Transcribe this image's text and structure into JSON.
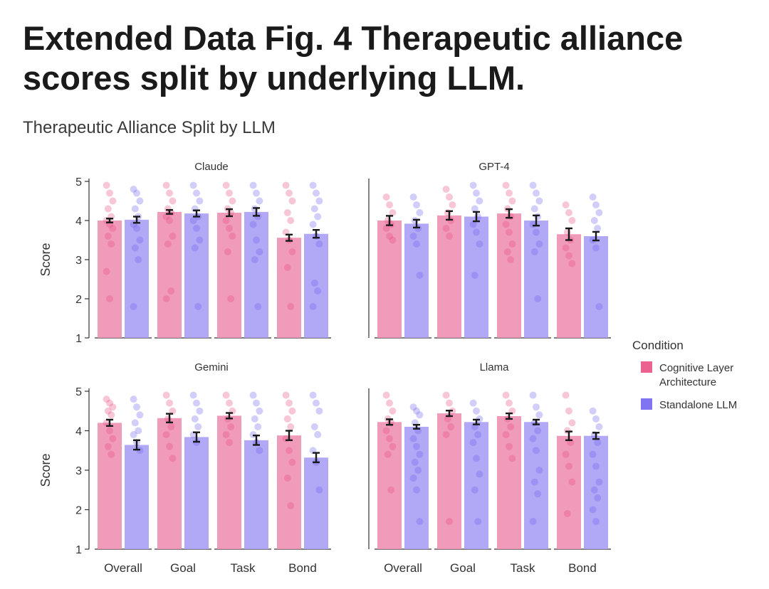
{
  "heading": "Extended Data Fig. 4 Therapeutic alliance scores split by underlying LLM.",
  "chart_data": {
    "type": "bar",
    "title": "Therapeutic Alliance Split by LLM",
    "ylabel": "Score",
    "ylim": [
      1,
      5
    ],
    "yticks": [
      "1",
      "2",
      "3",
      "4",
      "5"
    ],
    "categories": [
      "Overall",
      "Goal",
      "Task",
      "Bond"
    ],
    "legend": {
      "title": "Condition",
      "position": "right",
      "entries": [
        {
          "name": "Cognitive Layer Architecture",
          "lines": [
            "Cognitive Layer",
            "Architecture"
          ],
          "color": "#f090b4"
        },
        {
          "name": "Standalone LLM",
          "lines": [
            "Standalone LLM"
          ],
          "color": "#a8a0f4"
        }
      ]
    },
    "colors": {
      "cla_bar": "#f090b4",
      "cla_dot": "#e8457c",
      "sa_bar": "#a8a0f4",
      "sa_dot": "#6a5cf0",
      "error_bar": "#1a1a1a"
    },
    "panels": [
      {
        "name": "Claude",
        "series": [
          {
            "name": "Cognitive Layer Architecture",
            "values": [
              4.0,
              4.22,
              4.2,
              3.56
            ],
            "errors": [
              0.05,
              0.05,
              0.09,
              0.08
            ],
            "points": [
              [
                4.9,
                4.7,
                4.5,
                4.3,
                4.1,
                4.0,
                3.9,
                3.8,
                3.6,
                3.4,
                2.7,
                2.0
              ],
              [
                4.9,
                4.7,
                4.5,
                4.3,
                4.2,
                4.1,
                4.0,
                3.6,
                3.4,
                2.2,
                2.0
              ],
              [
                4.9,
                4.7,
                4.5,
                4.3,
                4.2,
                4.0,
                3.8,
                3.6,
                3.2,
                2.0
              ],
              [
                4.9,
                4.7,
                4.5,
                4.2,
                4.0,
                3.7,
                3.5,
                3.2,
                2.8,
                1.8
              ]
            ]
          },
          {
            "name": "Standalone LLM",
            "values": [
              4.02,
              4.18,
              4.22,
              3.66
            ],
            "errors": [
              0.08,
              0.08,
              0.1,
              0.1
            ],
            "points": [
              [
                4.8,
                4.7,
                4.5,
                4.3,
                4.1,
                3.9,
                3.8,
                3.5,
                3.3,
                3.0,
                1.8
              ],
              [
                4.9,
                4.7,
                4.5,
                4.3,
                4.1,
                4.0,
                3.8,
                3.5,
                3.3,
                1.8
              ],
              [
                4.9,
                4.7,
                4.5,
                4.3,
                4.1,
                3.9,
                3.5,
                3.2,
                3.0,
                1.8
              ],
              [
                4.9,
                4.7,
                4.5,
                4.3,
                4.1,
                3.9,
                3.6,
                3.4,
                2.4,
                2.2,
                1.8
              ]
            ]
          }
        ]
      },
      {
        "name": "GPT-4",
        "series": [
          {
            "name": "Cognitive Layer Architecture",
            "values": [
              4.0,
              4.13,
              4.18,
              3.65
            ],
            "errors": [
              0.12,
              0.11,
              0.11,
              0.15
            ],
            "points": [
              [
                4.6,
                4.4,
                4.2,
                4.0,
                3.9,
                3.8,
                3.6,
                3.5
              ],
              [
                4.8,
                4.6,
                4.4,
                4.2,
                4.0,
                3.8,
                3.6
              ],
              [
                4.9,
                4.7,
                4.5,
                4.3,
                4.1,
                3.9,
                3.7,
                3.4,
                3.2,
                3.0
              ],
              [
                4.4,
                4.2,
                4.0,
                3.7,
                3.5,
                3.3,
                3.1,
                2.9
              ]
            ]
          },
          {
            "name": "Standalone LLM",
            "values": [
              3.92,
              4.1,
              4.0,
              3.6
            ],
            "errors": [
              0.1,
              0.12,
              0.13,
              0.11
            ],
            "points": [
              [
                4.6,
                4.4,
                4.2,
                4.0,
                3.8,
                3.6,
                3.4,
                2.6
              ],
              [
                4.9,
                4.7,
                4.5,
                4.3,
                4.1,
                3.9,
                3.7,
                3.4,
                2.6
              ],
              [
                4.9,
                4.7,
                4.5,
                4.3,
                4.1,
                3.9,
                3.7,
                3.4,
                3.2,
                2.0
              ],
              [
                4.6,
                4.4,
                4.2,
                4.0,
                3.8,
                3.5,
                3.3,
                1.8
              ]
            ]
          }
        ]
      },
      {
        "name": "Gemini",
        "series": [
          {
            "name": "Cognitive Layer Architecture",
            "values": [
              4.2,
              4.32,
              4.38,
              3.88
            ],
            "errors": [
              0.08,
              0.11,
              0.07,
              0.12
            ],
            "points": [
              [
                4.8,
                4.7,
                4.6,
                4.5,
                4.4,
                4.2,
                4.0,
                3.8,
                3.6,
                3.4
              ],
              [
                4.9,
                4.7,
                4.5,
                4.3,
                4.1,
                3.9,
                3.6,
                3.3
              ],
              [
                4.9,
                4.7,
                4.5,
                4.3,
                4.1,
                3.9,
                3.7
              ],
              [
                4.9,
                4.7,
                4.5,
                4.3,
                4.1,
                3.8,
                3.5,
                3.2,
                2.8,
                2.1
              ]
            ]
          },
          {
            "name": "Standalone LLM",
            "values": [
              3.64,
              3.84,
              3.76,
              3.32
            ],
            "errors": [
              0.12,
              0.12,
              0.12,
              0.12
            ],
            "points": [
              [
                4.8,
                4.6,
                4.4,
                4.2,
                4.0,
                3.9,
                3.7,
                3.5
              ],
              [
                4.9,
                4.7,
                4.5,
                4.3,
                4.1,
                3.9,
                3.7
              ],
              [
                4.9,
                4.7,
                4.5,
                4.3,
                4.1,
                3.9,
                3.7,
                3.5
              ],
              [
                4.9,
                4.7,
                4.5,
                4.1,
                3.9,
                3.5,
                3.2,
                2.5
              ]
            ]
          }
        ]
      },
      {
        "name": "Llama",
        "series": [
          {
            "name": "Cognitive Layer Architecture",
            "values": [
              4.22,
              4.44,
              4.37,
              3.87
            ],
            "errors": [
              0.07,
              0.07,
              0.07,
              0.11
            ],
            "points": [
              [
                4.9,
                4.7,
                4.5,
                4.3,
                4.2,
                4.0,
                3.8,
                3.6,
                3.4,
                2.5
              ],
              [
                4.9,
                4.7,
                4.5,
                4.3,
                4.1,
                3.9,
                1.7
              ],
              [
                4.9,
                4.7,
                4.5,
                4.3,
                4.1,
                3.9,
                3.6,
                3.3
              ],
              [
                4.9,
                4.5,
                4.2,
                4.0,
                3.7,
                3.4,
                3.1,
                2.7,
                1.9
              ]
            ]
          },
          {
            "name": "Standalone LLM",
            "values": [
              4.1,
              4.22,
              4.22,
              3.87
            ],
            "errors": [
              0.05,
              0.06,
              0.06,
              0.08
            ],
            "points": [
              [
                4.6,
                4.5,
                4.4,
                4.2,
                4.0,
                3.8,
                3.6,
                3.4,
                3.2,
                3.0,
                2.8,
                2.5,
                1.7
              ],
              [
                4.7,
                4.5,
                4.3,
                4.1,
                3.9,
                3.7,
                3.3,
                2.9,
                2.5,
                1.7
              ],
              [
                4.9,
                4.6,
                4.4,
                4.2,
                4.0,
                3.8,
                3.5,
                3.0,
                2.7,
                2.4,
                1.7
              ],
              [
                4.5,
                4.3,
                4.1,
                3.9,
                3.7,
                3.4,
                3.1,
                2.7,
                2.5,
                2.3,
                2.0,
                1.7
              ]
            ]
          }
        ]
      }
    ]
  }
}
